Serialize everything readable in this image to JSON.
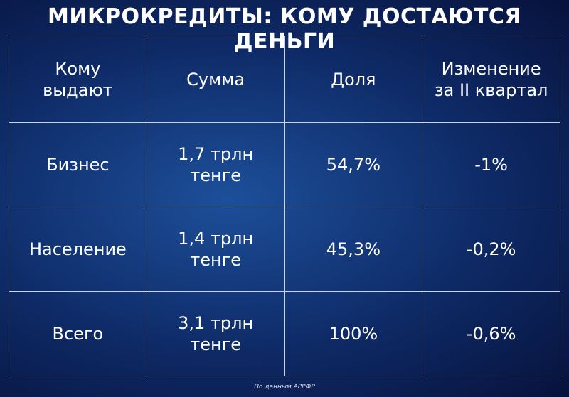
{
  "header": {
    "title": "МИКРОКРЕДИТЫ: КОМУ ДОСТАЮТСЯ ДЕНЬГИ"
  },
  "table": {
    "columns": [
      "Кому выдают",
      "Сумма",
      "Доля",
      "Изменение за II квартал"
    ],
    "rows": [
      [
        "Бизнес",
        "1,7 трлн тенге",
        "54,7%",
        "-1%"
      ],
      [
        "Население",
        "1,4 трлн тенге",
        "45,3%",
        "-0,2%"
      ],
      [
        "Всего",
        "3,1 трлн тенге",
        "100%",
        "-0,6%"
      ]
    ]
  },
  "footer": {
    "source": "По данным АРРФР"
  }
}
